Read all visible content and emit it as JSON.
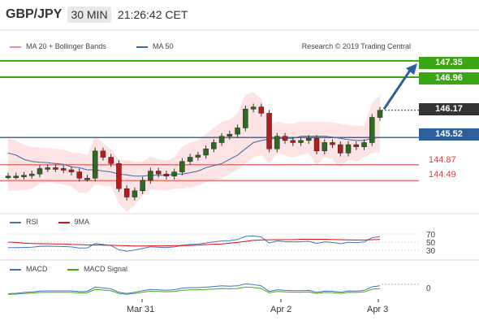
{
  "header": {
    "pair": "GBP/JPY",
    "timeframe": "30 MIN",
    "time": "21:26:42 CET"
  },
  "legend": {
    "bollinger": "MA 20 + Bollinger Bands",
    "ma50": "MA 50",
    "copyright": "Research © 2019 Trading Central"
  },
  "colors": {
    "bollinger": "#f08a8a",
    "ma50": "#3a6aa8",
    "resistance": "#3aa614",
    "support": "#e57373",
    "current": "#333333",
    "arrow": "#2d5f9c",
    "rsi": "#4472c4",
    "rsi_ma": "#dd1111",
    "macd": "#4472c4",
    "macd_signal": "#44aa11"
  },
  "levels": {
    "r1": "147.35",
    "r2": "146.96",
    "current": "146.17",
    "ma50": "145.52",
    "s1": "144.87",
    "s2": "144.49"
  },
  "rsi": {
    "label": "RSI",
    "ma_label": "9MA",
    "ticks": [
      "70",
      "50",
      "30"
    ]
  },
  "macd": {
    "label": "MACD",
    "signal_label": "MACD Signal",
    "ticks": [
      "0"
    ]
  },
  "dates": [
    "Mar 31",
    "Apr 2",
    "Apr 3"
  ],
  "chart_data": {
    "type": "line",
    "title": "GBP/JPY 30 MIN",
    "series": [
      {
        "name": "GBP/JPY close",
        "x": [
          0,
          10,
          20,
          30,
          40,
          50,
          60,
          70,
          80,
          90,
          100,
          110,
          120,
          130,
          140,
          150,
          160,
          170,
          180,
          190,
          200,
          210,
          220,
          230,
          240,
          250,
          260,
          270,
          280,
          290,
          300,
          310,
          320,
          330,
          340,
          350,
          360,
          370,
          380,
          390,
          400,
          410,
          420,
          430,
          440,
          450,
          460,
          470
        ],
        "values": [
          144.6,
          144.6,
          144.62,
          144.65,
          144.78,
          144.8,
          144.78,
          144.75,
          144.7,
          144.55,
          144.55,
          145.2,
          145.05,
          144.9,
          144.3,
          144.1,
          144.25,
          144.5,
          144.72,
          144.65,
          144.6,
          144.7,
          144.95,
          145.05,
          145.1,
          145.25,
          145.4,
          145.55,
          145.6,
          145.75,
          146.2,
          146.25,
          146.1,
          145.25,
          145.55,
          145.45,
          145.4,
          145.45,
          145.5,
          145.2,
          145.4,
          145.35,
          145.15,
          145.35,
          145.3,
          145.4,
          146.0,
          146.17
        ]
      },
      {
        "name": "MA 50",
        "values": [
          145.15,
          145.1,
          145.0,
          144.95,
          144.93,
          144.92,
          144.9,
          144.88,
          144.82,
          144.8,
          144.75,
          144.75,
          144.72,
          144.7,
          144.65,
          144.63,
          144.6,
          144.6,
          144.62,
          144.62,
          144.62,
          144.65,
          144.65,
          144.68,
          144.72,
          144.8,
          144.85,
          144.9,
          145.0,
          145.1,
          145.25,
          145.4,
          145.45,
          145.48,
          145.5,
          145.5,
          145.5,
          145.55,
          145.55,
          145.55,
          145.55,
          145.53,
          145.5,
          145.47,
          145.45,
          145.45,
          145.5,
          145.52
        ]
      }
    ],
    "levels": [
      147.35,
      146.96,
      146.17,
      145.52,
      144.87,
      144.49
    ],
    "rsi_ticks": [
      30,
      50,
      70
    ],
    "ylim": [
      143.8,
      147.6
    ],
    "x_tick_labels": [
      "Mar 31",
      "Apr 2",
      "Apr 3"
    ]
  }
}
